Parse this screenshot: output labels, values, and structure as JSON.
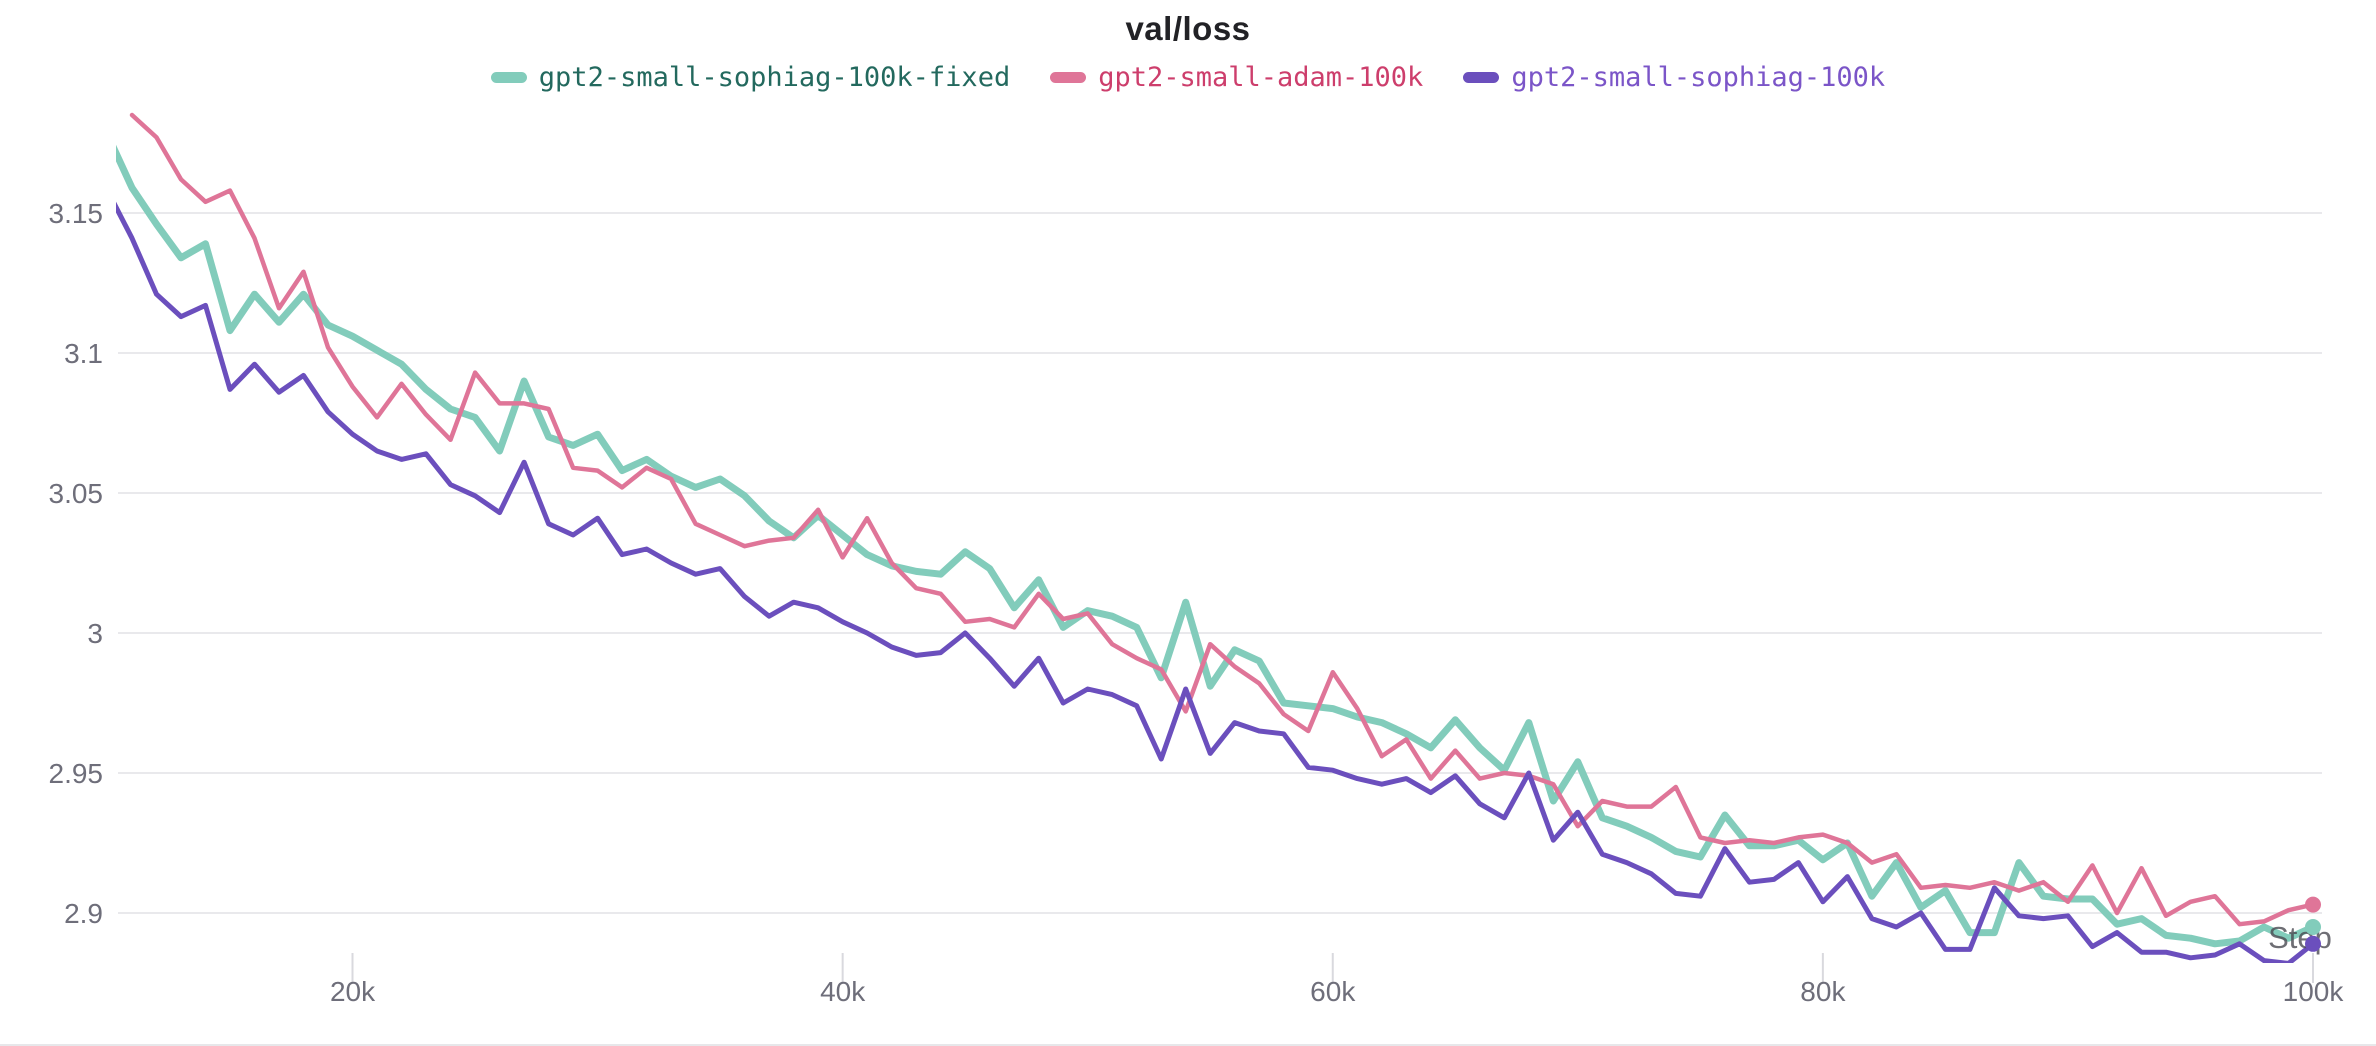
{
  "header": {
    "title": "val/loss"
  },
  "colors": {
    "background": "#ffffff",
    "gridline": "#e9e9ec",
    "tick_mark": "#d9d9de",
    "axis_label": "#6e6e7a",
    "title_text": "#222226",
    "step_label": "#4a4a52",
    "panel_border": "#e7e7ea",
    "teal": "#82ccbb",
    "pink": "#df7598",
    "purple": "#6b4fbd"
  },
  "legend": [
    {
      "id": "gpt2-small-sophiag-100k-fixed",
      "label": "gpt2-small-sophiag-100k-fixed",
      "swatch_color": "#82ccbb",
      "label_color": "#23695e"
    },
    {
      "id": "gpt2-small-adam-100k",
      "label": "gpt2-small-adam-100k",
      "swatch_color": "#df7598",
      "label_color": "#cd3e6c"
    },
    {
      "id": "gpt2-small-sophiag-100k",
      "label": "gpt2-small-sophiag-100k",
      "swatch_color": "#6b4fbd",
      "label_color": "#7b55c8"
    }
  ],
  "axes": {
    "x_label": "Step",
    "x_ticks": [
      {
        "value": 20000,
        "label": "20k"
      },
      {
        "value": 40000,
        "label": "40k"
      },
      {
        "value": 60000,
        "label": "60k"
      },
      {
        "value": 80000,
        "label": "80k"
      },
      {
        "value": 100000,
        "label": "100k"
      }
    ],
    "y_ticks": [
      {
        "value": 3.15,
        "label": "3.15"
      },
      {
        "value": 3.1,
        "label": "3.1"
      },
      {
        "value": 3.05,
        "label": "3.05"
      },
      {
        "value": 3.0,
        "label": "3"
      },
      {
        "value": 2.95,
        "label": "2.95"
      },
      {
        "value": 2.9,
        "label": "2.9"
      }
    ]
  },
  "chart_data": {
    "type": "line",
    "title": "val/loss",
    "xlabel": "Step",
    "ylabel": "",
    "xlim": [
      10430,
      100300
    ],
    "ylim": [
      2.8825,
      3.19
    ],
    "grid": "horizontal",
    "legend_position": "top-center",
    "x_units": "training steps (uniform 1000-step interval per point)",
    "series": [
      {
        "name": "gpt2-small-sophiag-100k-fixed",
        "color": "#82ccbb",
        "line_width": 7,
        "x_start": 10000,
        "x_step": 1000,
        "values": [
          3.178,
          3.159,
          3.146,
          3.134,
          3.139,
          3.108,
          3.121,
          3.111,
          3.121,
          3.11,
          3.106,
          3.101,
          3.096,
          3.087,
          3.08,
          3.077,
          3.065,
          3.09,
          3.07,
          3.067,
          3.071,
          3.058,
          3.062,
          3.056,
          3.052,
          3.055,
          3.049,
          3.04,
          3.034,
          3.042,
          3.035,
          3.028,
          3.024,
          3.022,
          3.021,
          3.029,
          3.023,
          3.009,
          3.019,
          3.002,
          3.008,
          3.006,
          3.002,
          2.984,
          3.011,
          2.981,
          2.994,
          2.99,
          2.975,
          2.974,
          2.973,
          2.97,
          2.968,
          2.964,
          2.959,
          2.969,
          2.959,
          2.951,
          2.968,
          2.94,
          2.954,
          2.934,
          2.931,
          2.927,
          2.922,
          2.92,
          2.935,
          2.924,
          2.924,
          2.926,
          2.919,
          2.925,
          2.906,
          2.918,
          2.902,
          2.908,
          2.893,
          2.893,
          2.918,
          2.906,
          2.905,
          2.905,
          2.896,
          2.898,
          2.892,
          2.891,
          2.889,
          2.89,
          2.895,
          2.891,
          2.895
        ]
      },
      {
        "name": "gpt2-small-adam-100k",
        "color": "#df7598",
        "line_width": 4.5,
        "x_start": 11000,
        "x_step": 1000,
        "values": [
          3.185,
          3.177,
          3.162,
          3.154,
          3.158,
          3.141,
          3.116,
          3.129,
          3.102,
          3.088,
          3.077,
          3.089,
          3.078,
          3.069,
          3.093,
          3.082,
          3.082,
          3.08,
          3.059,
          3.058,
          3.052,
          3.059,
          3.055,
          3.039,
          3.035,
          3.031,
          3.033,
          3.034,
          3.044,
          3.027,
          3.041,
          3.025,
          3.016,
          3.014,
          3.004,
          3.005,
          3.002,
          3.014,
          3.005,
          3.007,
          2.996,
          2.991,
          2.987,
          2.972,
          2.996,
          2.988,
          2.982,
          2.971,
          2.965,
          2.986,
          2.973,
          2.956,
          2.962,
          2.948,
          2.958,
          2.948,
          2.95,
          2.949,
          2.946,
          2.931,
          2.94,
          2.938,
          2.938,
          2.945,
          2.927,
          2.925,
          2.926,
          2.925,
          2.927,
          2.928,
          2.925,
          2.918,
          2.921,
          2.909,
          2.91,
          2.909,
          2.911,
          2.908,
          2.911,
          2.904,
          2.917,
          2.9,
          2.916,
          2.899,
          2.904,
          2.906,
          2.896,
          2.897,
          2.901,
          2.903
        ]
      },
      {
        "name": "gpt2-small-sophiag-100k",
        "color": "#6b4fbd",
        "line_width": 5,
        "x_start": 10000,
        "x_step": 1000,
        "values": [
          3.158,
          3.141,
          3.121,
          3.113,
          3.117,
          3.087,
          3.096,
          3.086,
          3.092,
          3.079,
          3.071,
          3.065,
          3.062,
          3.064,
          3.053,
          3.049,
          3.043,
          3.061,
          3.039,
          3.035,
          3.041,
          3.028,
          3.03,
          3.025,
          3.021,
          3.023,
          3.013,
          3.006,
          3.011,
          3.009,
          3.004,
          3.0,
          2.995,
          2.992,
          2.993,
          3.0,
          2.991,
          2.981,
          2.991,
          2.975,
          2.98,
          2.978,
          2.974,
          2.955,
          2.98,
          2.957,
          2.968,
          2.965,
          2.964,
          2.952,
          2.951,
          2.948,
          2.946,
          2.948,
          2.943,
          2.949,
          2.939,
          2.934,
          2.95,
          2.926,
          2.936,
          2.921,
          2.918,
          2.914,
          2.907,
          2.906,
          2.923,
          2.911,
          2.912,
          2.918,
          2.904,
          2.913,
          2.898,
          2.895,
          2.9,
          2.887,
          2.887,
          2.909,
          2.899,
          2.898,
          2.899,
          2.888,
          2.893,
          2.886,
          2.886,
          2.884,
          2.885,
          2.889,
          2.883,
          2.882,
          2.889
        ]
      }
    ],
    "endpoint_markers": true
  }
}
